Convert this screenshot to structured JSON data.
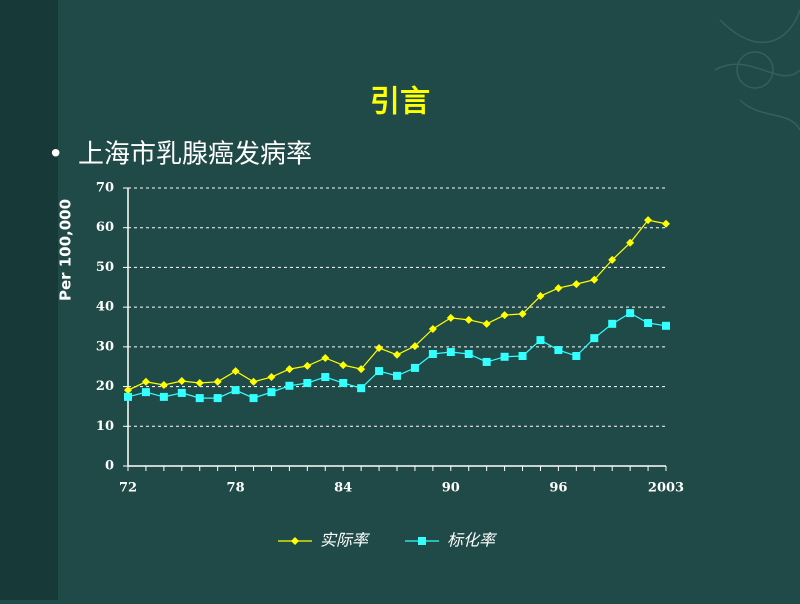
{
  "slide": {
    "title": "引言",
    "bullet": "上海市乳腺癌发病率"
  },
  "chart_data": {
    "type": "line",
    "y_label": "Per 100,000",
    "categories": [
      "72",
      null,
      null,
      null,
      null,
      null,
      "78",
      null,
      null,
      null,
      null,
      null,
      "84",
      null,
      null,
      null,
      null,
      null,
      "90",
      null,
      null,
      null,
      null,
      null,
      "96",
      null,
      null,
      null,
      null,
      null,
      "2003"
    ],
    "series": [
      {
        "name": "实际率",
        "color": "#ffff00",
        "marker": "diamond",
        "values": [
          19.1,
          21.2,
          20.4,
          21.4,
          20.9,
          21.2,
          23.9,
          21.2,
          22.4,
          24.4,
          25.2,
          27.2,
          25.4,
          24.4,
          29.7,
          28.0,
          30.2,
          34.5,
          37.3,
          36.8,
          35.8,
          38.0,
          38.3,
          42.8,
          44.8,
          45.8,
          46.9,
          51.9,
          56.2,
          61.9,
          61.0
        ]
      },
      {
        "name": "标化率",
        "color": "#33ffff",
        "marker": "square",
        "values": [
          17.4,
          18.6,
          17.4,
          18.4,
          17.1,
          17.1,
          19.1,
          17.1,
          18.6,
          20.2,
          20.9,
          22.4,
          20.9,
          19.6,
          23.9,
          22.7,
          24.7,
          28.2,
          28.7,
          28.2,
          26.2,
          27.5,
          27.7,
          31.7,
          29.2,
          27.7,
          32.2,
          35.8,
          38.5,
          36.0,
          35.3
        ]
      }
    ],
    "ylim": [
      0,
      70
    ],
    "yticks": [
      0,
      10,
      20,
      30,
      40,
      50,
      60,
      70
    ],
    "grid": true,
    "legend": "bottom"
  }
}
